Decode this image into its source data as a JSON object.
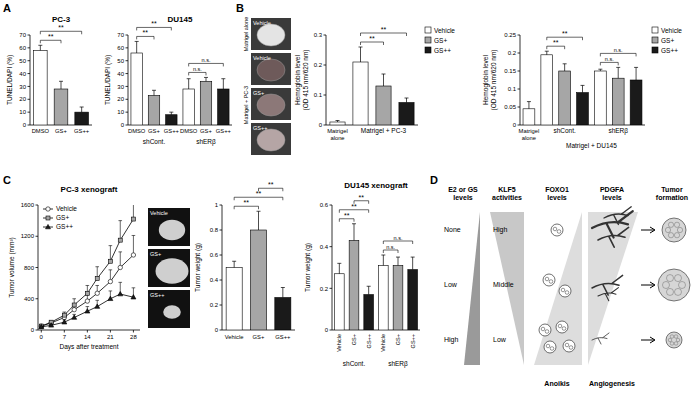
{
  "panel_labels": [
    "A",
    "B",
    "C",
    "D"
  ],
  "chart_data": [
    {
      "type": "bar",
      "title": "PC-3",
      "y_label": "TUNEL/DAPI (%)",
      "categories": [
        "DMSO",
        "GS+",
        "GS++"
      ],
      "values": [
        58,
        28,
        10
      ],
      "errors": [
        4,
        6,
        4
      ],
      "colors": [
        "#ffffff",
        "#a6a6a6",
        "#1a1a1a"
      ],
      "ylim": [
        0,
        70
      ],
      "yticks": [
        0,
        10,
        20,
        30,
        40,
        50,
        60,
        70
      ],
      "annotations": [
        {
          "text": "**",
          "from": 0,
          "to": 1
        },
        {
          "text": "**",
          "from": 0,
          "to": 2
        }
      ]
    },
    {
      "type": "bar",
      "title": "DU145",
      "y_label": "TUNEL/DAPI (%)",
      "categories": [
        "DMSO",
        "GS+",
        "GS++",
        "DMSO",
        "GS+",
        "GS++"
      ],
      "values": [
        56,
        23,
        8,
        28,
        34,
        28
      ],
      "errors": [
        9,
        4,
        2,
        8,
        3,
        8
      ],
      "colors": [
        "#ffffff",
        "#a6a6a6",
        "#1a1a1a",
        "#ffffff",
        "#a6a6a6",
        "#1a1a1a"
      ],
      "groups": [
        {
          "label": "shCont.",
          "from": 0,
          "to": 2
        },
        {
          "label": "shERβ",
          "from": 3,
          "to": 5
        }
      ],
      "ylim": [
        0,
        70
      ],
      "yticks": [
        0,
        10,
        20,
        30,
        40,
        50,
        60,
        70
      ],
      "annotations": [
        {
          "text": "**",
          "from": 0,
          "to": 1
        },
        {
          "text": "**",
          "from": 0,
          "to": 2
        },
        {
          "text": "n.s.",
          "from": 3,
          "to": 4
        },
        {
          "text": "n.s.",
          "from": 3,
          "to": 5
        }
      ]
    },
    {
      "type": "bar",
      "y_label": [
        "Hemoglobin level",
        "(OD 415 nm/620 nm)"
      ],
      "categories": [
        "Matrigel alone",
        null,
        null,
        null
      ],
      "values": [
        0.01,
        0.21,
        0.13,
        0.075
      ],
      "errors": [
        0.005,
        0.05,
        0.04,
        0.015
      ],
      "colors": [
        "#ffffff",
        "#ffffff",
        "#a6a6a6",
        "#1a1a1a"
      ],
      "groups": [
        {
          "label": "Matrigel + PC-3",
          "from": 1,
          "to": 3
        }
      ],
      "legend": "right",
      "legend_entries": [
        {
          "name": "Vehicle",
          "color": "#ffffff"
        },
        {
          "name": "GS+",
          "color": "#a6a6a6"
        },
        {
          "name": "GS++",
          "color": "#1a1a1a"
        }
      ],
      "ylim": [
        0,
        0.3
      ],
      "yticks": [
        0,
        0.1,
        0.2,
        0.3
      ],
      "annotations": [
        {
          "text": "**",
          "from": 1,
          "to": 2
        },
        {
          "text": "**",
          "from": 1,
          "to": 3
        }
      ]
    },
    {
      "type": "bar",
      "y_label": [
        "Hemoglobin level",
        "(OD 415 nm/620 nm)"
      ],
      "categories": [
        "Matrigel alone",
        null,
        null,
        null,
        null,
        null,
        null
      ],
      "values": [
        0.045,
        0.195,
        0.15,
        0.09,
        0.15,
        0.13,
        0.125
      ],
      "errors": [
        0.02,
        0.01,
        0.02,
        0.02,
        0.005,
        0.03,
        0.035
      ],
      "colors": [
        "#ffffff",
        "#ffffff",
        "#a6a6a6",
        "#1a1a1a",
        "#ffffff",
        "#a6a6a6",
        "#1a1a1a"
      ],
      "groups": [
        {
          "label": "shCont.",
          "from": 1,
          "to": 3
        },
        {
          "label": "shERβ",
          "from": 4,
          "to": 6
        }
      ],
      "supergroup": {
        "label": "Matrigel + DU145",
        "from": 1,
        "to": 6
      },
      "legend": "right",
      "legend_entries": [
        {
          "name": "Vehicle",
          "color": "#ffffff"
        },
        {
          "name": "GS+",
          "color": "#a6a6a6"
        },
        {
          "name": "GS++",
          "color": "#1a1a1a"
        }
      ],
      "ylim": [
        0,
        0.25
      ],
      "yticks": [
        0,
        0.05,
        0.1,
        0.15,
        0.2,
        0.25
      ],
      "annotations": [
        {
          "text": "**",
          "from": 1,
          "to": 2
        },
        {
          "text": "**",
          "from": 1,
          "to": 3
        },
        {
          "text": "n.s.",
          "from": 4,
          "to": 5
        },
        {
          "text": "n.s.",
          "from": 4,
          "to": 6
        }
      ]
    },
    {
      "type": "line",
      "title": "PC-3 xenograft",
      "y_label": "Tumor volume (mm³)",
      "x_label": "Days after treatment",
      "x": [
        0,
        3,
        7,
        10,
        14,
        17,
        21,
        24,
        28
      ],
      "xlim": [
        -1,
        30
      ],
      "xticks": [
        0,
        7,
        14,
        21,
        28
      ],
      "ylim": [
        0,
        1600
      ],
      "yticks": [
        0,
        400,
        800,
        1200,
        1600
      ],
      "legend": "top-left",
      "series": [
        {
          "name": "Vehicle",
          "color": "#ffffff",
          "marker": "circle",
          "values": [
            50,
            90,
            160,
            260,
            370,
            470,
            620,
            800,
            960
          ],
          "errors": [
            10,
            20,
            40,
            60,
            80,
            100,
            150,
            200,
            250
          ]
        },
        {
          "name": "GS+",
          "color": "#a6a6a6",
          "marker": "square",
          "values": [
            50,
            100,
            190,
            320,
            470,
            660,
            880,
            1150,
            1420
          ],
          "errors": [
            10,
            20,
            40,
            80,
            100,
            150,
            200,
            250,
            200
          ]
        },
        {
          "name": "GS++",
          "color": "#1a1a1a",
          "marker": "triangle",
          "values": [
            40,
            60,
            100,
            160,
            240,
            300,
            400,
            460,
            420
          ],
          "errors": [
            10,
            15,
            30,
            40,
            60,
            80,
            100,
            150,
            120
          ]
        }
      ]
    },
    {
      "type": "bar",
      "y_label": "Tumor weight (g)",
      "categories": [
        "Vehicle",
        "GS+",
        "GS++"
      ],
      "values": [
        0.5,
        0.8,
        0.26
      ],
      "errors": [
        0.05,
        0.15,
        0.08
      ],
      "colors": [
        "#ffffff",
        "#a6a6a6",
        "#1a1a1a"
      ],
      "ylim": [
        0,
        1
      ],
      "yticks": [
        0,
        0.2,
        0.4,
        0.6,
        0.8,
        1
      ],
      "annotations": [
        {
          "text": "**",
          "from": 0,
          "to": 1
        },
        {
          "text": "**",
          "from": 0,
          "to": 2
        },
        {
          "text": "**",
          "from": 1,
          "to": 2
        }
      ]
    },
    {
      "type": "bar",
      "title": "DU145 xenograft",
      "y_label": "Tumor weight (g)",
      "categories": [
        "Vehicle",
        "GS+",
        "GS++",
        "Vehicle",
        "GS+",
        "GS++"
      ],
      "values": [
        0.27,
        0.43,
        0.17,
        0.31,
        0.31,
        0.29
      ],
      "errors": [
        0.05,
        0.08,
        0.04,
        0.05,
        0.04,
        0.06
      ],
      "colors": [
        "#ffffff",
        "#a6a6a6",
        "#1a1a1a",
        "#ffffff",
        "#a6a6a6",
        "#1a1a1a"
      ],
      "groups": [
        {
          "label": "shCont.",
          "from": 0,
          "to": 2
        },
        {
          "label": "shERβ",
          "from": 3,
          "to": 5
        }
      ],
      "ylim": [
        0,
        0.6
      ],
      "yticks": [
        0,
        0.2,
        0.4,
        0.6
      ],
      "annotations": [
        {
          "text": "**",
          "from": 0,
          "to": 1
        },
        {
          "text": "**",
          "from": 0,
          "to": 2
        },
        {
          "text": "**",
          "from": 1,
          "to": 2
        },
        {
          "text": "n.s.",
          "from": 3,
          "to": 4
        },
        {
          "text": "n.s.",
          "from": 3,
          "to": 5
        }
      ]
    }
  ],
  "matrigel_photos": {
    "side_labels": [
      "Matrigel alone",
      "Matrigel + PC-3"
    ],
    "labels": [
      "Vehicle",
      "Vehicle",
      "GS+",
      "GS++"
    ]
  },
  "tumor_photos": {
    "labels": [
      "Vehicle",
      "GS+",
      "GS++"
    ]
  },
  "diagram": {
    "headers": [
      [
        "E2 or GS",
        "levels"
      ],
      [
        "KLF5",
        "activities"
      ],
      [
        "FOXO1",
        "levels"
      ],
      [
        "PDGFA",
        "levels"
      ],
      [
        "Tumor",
        "formation"
      ]
    ],
    "e2_levels": [
      "None",
      "Low",
      "High"
    ],
    "klf5_activities": [
      "High",
      "Middle",
      "Low"
    ],
    "processes": [
      "Anoikis",
      "Angiogenesis"
    ]
  }
}
